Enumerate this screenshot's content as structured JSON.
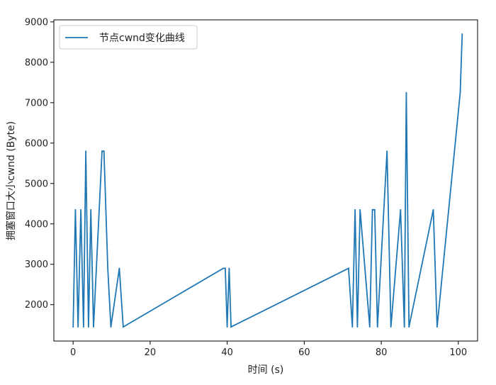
{
  "chart_data": {
    "type": "line",
    "xlabel": "时间 (s)",
    "ylabel": "拥塞窗口大小cwnd (Byte)",
    "xlim": [
      -5,
      105
    ],
    "ylim": [
      1100,
      9050
    ],
    "xticks": [
      0,
      20,
      40,
      60,
      80,
      100
    ],
    "yticks": [
      2000,
      3000,
      4000,
      5000,
      6000,
      7000,
      8000,
      9000
    ],
    "legend": "upper-left",
    "grid": false,
    "series": [
      {
        "name": "节点cwnd变化曲线",
        "color": "#1f77b4",
        "x": [
          0,
          0.6,
          1.3,
          2.0,
          2.7,
          3.3,
          4.0,
          4.6,
          5.3,
          7.5,
          8.0,
          9.0,
          9.8,
          12.0,
          13.0,
          39.0,
          39.5,
          40.0,
          40.5,
          41.0,
          71.5,
          72.5,
          73.2,
          73.8,
          74.5,
          77.0,
          77.7,
          78.3,
          79.0,
          81.5,
          82.5,
          85.0,
          86.0,
          86.5,
          87.2,
          93.5,
          94.5,
          100.5,
          101.0
        ],
        "y": [
          1450,
          4350,
          1450,
          4350,
          1450,
          5800,
          1450,
          4350,
          1450,
          5800,
          5800,
          2900,
          1450,
          2900,
          1450,
          2900,
          2900,
          1450,
          2900,
          1450,
          2900,
          1450,
          4350,
          1450,
          4350,
          1450,
          4350,
          4350,
          1450,
          5800,
          1450,
          4350,
          1450,
          7250,
          1450,
          4350,
          1450,
          7250,
          8700
        ]
      }
    ]
  }
}
